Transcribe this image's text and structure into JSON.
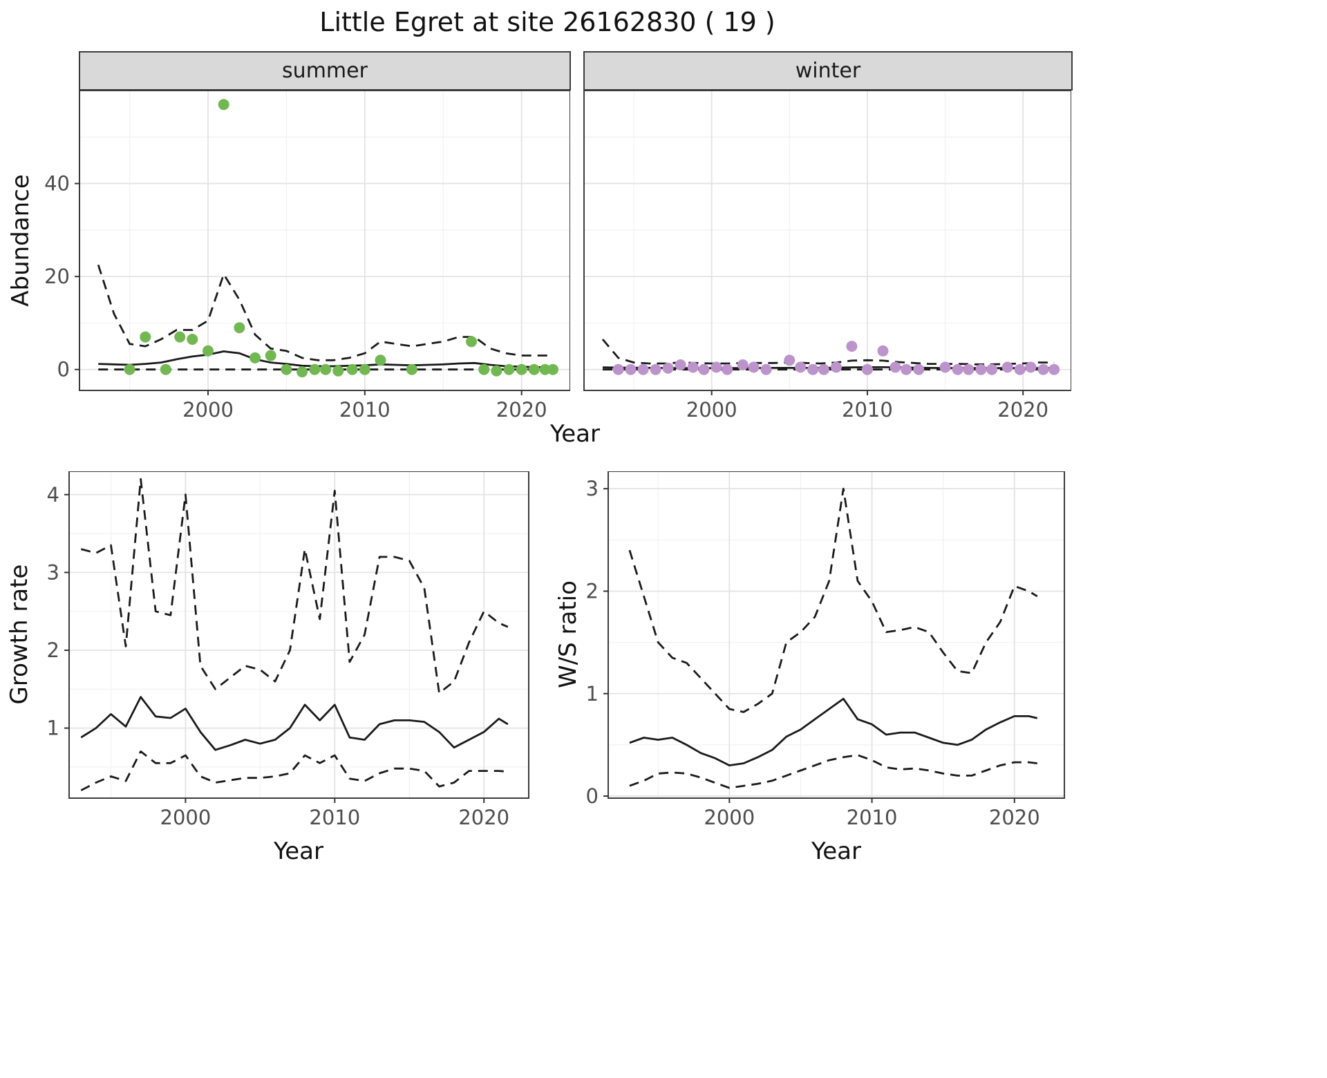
{
  "title": "Little Egret at site 26162830 ( 19 )",
  "axis_labels": {
    "abundance": "Abundance",
    "year": "Year",
    "growth_rate": "Growth rate",
    "ws_ratio": "W/S ratio"
  },
  "facets": {
    "summer": "summer",
    "winter": "winter"
  },
  "colors": {
    "summer_point": "#72b852",
    "winter_point": "#bd93cc",
    "line": "#1a1a1a",
    "grid_major": "#e3e3e3",
    "grid_minor": "#f1f1f1",
    "panel_border": "#3b3b3b",
    "tick_label": "#4d4d4d",
    "strip_bg": "#d9d9d9"
  },
  "chart_data": [
    {
      "id": "summer",
      "type": "scatter",
      "title": "summer",
      "xlabel": "Year",
      "ylabel": "Abundance",
      "xlim": [
        1991.8,
        2023.1
      ],
      "ylim": [
        -4.5,
        60
      ],
      "xticks": [
        2000,
        2010,
        2020
      ],
      "yticks": [
        0,
        20,
        40
      ],
      "grid": true,
      "series": [
        {
          "name": "lower_ci",
          "style": "line",
          "dash": true,
          "color": "#1a1a1a",
          "x": [
            1993,
            1994,
            1995,
            1996,
            1997,
            1998,
            1999,
            2000,
            2001,
            2002,
            2003,
            2004,
            2005,
            2006,
            2007,
            2008,
            2009,
            2010,
            2011,
            2012,
            2013,
            2014,
            2015,
            2016,
            2017,
            2018,
            2019,
            2020,
            2021,
            2022
          ],
          "y": [
            0,
            0,
            0,
            0,
            0,
            0,
            0,
            0,
            0,
            0,
            0,
            0,
            0,
            0,
            0,
            0,
            0,
            0,
            0,
            0,
            0,
            0,
            0,
            0,
            0,
            0,
            0,
            0,
            0,
            0
          ]
        },
        {
          "name": "upper_ci",
          "style": "line",
          "dash": true,
          "color": "#1a1a1a",
          "x": [
            1993,
            1994,
            1995,
            1996,
            1997,
            1998,
            1999,
            2000,
            2001,
            2002,
            2003,
            2004,
            2005,
            2006,
            2007,
            2008,
            2009,
            2010,
            2011,
            2012,
            2013,
            2014,
            2015,
            2016,
            2017,
            2018,
            2019,
            2020,
            2021,
            2022
          ],
          "y": [
            22.5,
            12,
            5.5,
            5,
            6.5,
            8.5,
            8.5,
            10.5,
            20.5,
            15,
            7.5,
            4.5,
            4,
            2.5,
            2,
            2,
            2.5,
            3.5,
            6,
            5.5,
            5,
            5.5,
            6,
            7,
            7,
            4.5,
            3.5,
            3,
            3,
            3
          ]
        },
        {
          "name": "trend",
          "style": "line",
          "dash": false,
          "color": "#1a1a1a",
          "x": [
            1993,
            1994,
            1995,
            1996,
            1997,
            1998,
            1999,
            2000,
            2001,
            2002,
            2003,
            2004,
            2005,
            2006,
            2007,
            2008,
            2009,
            2010,
            2011,
            2012,
            2013,
            2014,
            2015,
            2016,
            2017,
            2018,
            2019,
            2020,
            2021,
            2022
          ],
          "y": [
            1.2,
            1.1,
            1.0,
            1.2,
            1.5,
            2.2,
            2.8,
            3.2,
            3.9,
            3.5,
            2.2,
            1.5,
            1.2,
            0.8,
            0.7,
            0.7,
            0.8,
            0.9,
            1.1,
            1.0,
            0.9,
            1.0,
            1.1,
            1.3,
            1.4,
            1.0,
            0.7,
            0.6,
            0.5,
            0.5
          ]
        },
        {
          "name": "observed",
          "style": "points",
          "color": "#72b852",
          "x": [
            1995,
            1996,
            1997.3,
            1998.2,
            1999,
            2000,
            2001,
            2002,
            2003,
            2004,
            2005,
            2006,
            2006.8,
            2007.5,
            2008.3,
            2009.2,
            2010,
            2011,
            2013,
            2016.8,
            2017.6,
            2018.4,
            2019.2,
            2020,
            2020.8,
            2021.5,
            2022
          ],
          "y": [
            0,
            7,
            0,
            7,
            6.5,
            4,
            57,
            9,
            2.5,
            3,
            0,
            -0.5,
            0,
            0,
            -0.3,
            0,
            0,
            2,
            0,
            6,
            0,
            -0.3,
            0,
            0,
            0,
            0,
            0
          ]
        }
      ]
    },
    {
      "id": "winter",
      "type": "scatter",
      "title": "winter",
      "xlabel": "Year",
      "ylabel": "Abundance",
      "xlim": [
        1991.8,
        2023.1
      ],
      "ylim": [
        -4.5,
        60
      ],
      "xticks": [
        2000,
        2010,
        2020
      ],
      "yticks": [
        0,
        20,
        40
      ],
      "grid": true,
      "series": [
        {
          "name": "lower_ci",
          "style": "line",
          "dash": true,
          "color": "#1a1a1a",
          "x": [
            1993,
            1994,
            1995,
            1996,
            1997,
            1998,
            1999,
            2000,
            2001,
            2002,
            2003,
            2004,
            2005,
            2006,
            2007,
            2008,
            2009,
            2010,
            2011,
            2012,
            2013,
            2014,
            2015,
            2016,
            2017,
            2018,
            2019,
            2020,
            2021,
            2022
          ],
          "y": [
            0,
            0,
            0,
            0,
            0,
            0,
            0,
            0,
            0,
            0,
            0,
            0,
            0,
            0,
            0,
            0,
            0,
            0,
            0,
            0,
            0,
            0,
            0,
            0,
            0,
            0,
            0,
            0,
            0,
            0
          ]
        },
        {
          "name": "upper_ci",
          "style": "line",
          "dash": true,
          "color": "#1a1a1a",
          "x": [
            1993,
            1994,
            1995,
            1996,
            1997,
            1998,
            1999,
            2000,
            2001,
            2002,
            2003,
            2004,
            2005,
            2006,
            2007,
            2008,
            2009,
            2010,
            2011,
            2012,
            2013,
            2014,
            2015,
            2016,
            2017,
            2018,
            2019,
            2020,
            2021,
            2022
          ],
          "y": [
            6.5,
            2.5,
            1.5,
            1.3,
            1.3,
            1.5,
            1.4,
            1.3,
            1.3,
            1.4,
            1.4,
            1.4,
            1.5,
            1.4,
            1.3,
            1.5,
            1.9,
            2.0,
            1.9,
            1.6,
            1.4,
            1.2,
            1.2,
            1.2,
            1.1,
            1.1,
            1.2,
            1.3,
            1.5,
            1.5
          ]
        },
        {
          "name": "trend",
          "style": "line",
          "dash": false,
          "color": "#1a1a1a",
          "x": [
            1993,
            1994,
            1995,
            1996,
            1997,
            1998,
            1999,
            2000,
            2001,
            2002,
            2003,
            2004,
            2005,
            2006,
            2007,
            2008,
            2009,
            2010,
            2011,
            2012,
            2013,
            2014,
            2015,
            2016,
            2017,
            2018,
            2019,
            2020,
            2021,
            2022
          ],
          "y": [
            0.45,
            0.4,
            0.38,
            0.35,
            0.33,
            0.32,
            0.3,
            0.3,
            0.3,
            0.32,
            0.33,
            0.35,
            0.35,
            0.35,
            0.35,
            0.38,
            0.45,
            0.5,
            0.5,
            0.45,
            0.4,
            0.35,
            0.32,
            0.3,
            0.3,
            0.3,
            0.3,
            0.3,
            0.3,
            0.3
          ]
        },
        {
          "name": "observed",
          "style": "points",
          "color": "#bd93cc",
          "x": [
            1994,
            1994.8,
            1995.6,
            1996.4,
            1997.2,
            1998,
            1998.8,
            1999.5,
            2000.3,
            2001,
            2002,
            2002.7,
            2003.5,
            2005,
            2005.7,
            2006.5,
            2007.2,
            2008,
            2009,
            2010,
            2011,
            2011.8,
            2012.5,
            2013.3,
            2015,
            2015.8,
            2016.5,
            2017.3,
            2018,
            2019,
            2019.8,
            2020.5,
            2021.3,
            2022
          ],
          "y": [
            0,
            0,
            0,
            0,
            0.3,
            1,
            0.5,
            0,
            0.5,
            0,
            1,
            0.5,
            0,
            2,
            0.5,
            0,
            0,
            0.5,
            5,
            0,
            4,
            0.5,
            0,
            0,
            0.5,
            0,
            0,
            0,
            0,
            0.5,
            0,
            0.5,
            0,
            0
          ]
        }
      ]
    },
    {
      "id": "growth",
      "type": "line",
      "title": "Growth rate",
      "xlabel": "Year",
      "ylabel": "Growth rate",
      "xlim": [
        1992.2,
        2023.0
      ],
      "ylim": [
        0.1,
        4.3
      ],
      "xticks": [
        2000,
        2010,
        2020
      ],
      "yticks": [
        1,
        2,
        3,
        4
      ],
      "grid": true,
      "series": [
        {
          "name": "lower_ci",
          "style": "line",
          "dash": true,
          "color": "#1a1a1a",
          "x": [
            1993,
            1994,
            1995,
            1996,
            1997,
            1998,
            1999,
            2000,
            2001,
            2002,
            2003,
            2004,
            2005,
            2006,
            2007,
            2008,
            2009,
            2010,
            2011,
            2012,
            2013,
            2014,
            2015,
            2016,
            2017,
            2018,
            2019,
            2020,
            2021,
            2021.6
          ],
          "y": [
            0.2,
            0.3,
            0.38,
            0.32,
            0.7,
            0.55,
            0.55,
            0.65,
            0.38,
            0.3,
            0.33,
            0.36,
            0.36,
            0.38,
            0.42,
            0.65,
            0.55,
            0.65,
            0.35,
            0.32,
            0.42,
            0.48,
            0.48,
            0.45,
            0.25,
            0.3,
            0.45,
            0.45,
            0.45,
            0.44
          ]
        },
        {
          "name": "upper_ci",
          "style": "line",
          "dash": true,
          "color": "#1a1a1a",
          "x": [
            1993,
            1994,
            1995,
            1996,
            1997,
            1998,
            1999,
            2000,
            2001,
            2002,
            2003,
            2004,
            2005,
            2006,
            2007,
            2008,
            2009,
            2010,
            2011,
            2012,
            2013,
            2014,
            2015,
            2016,
            2017,
            2018,
            2019,
            2020,
            2021,
            2021.6
          ],
          "y": [
            3.3,
            3.25,
            3.35,
            2.05,
            4.2,
            2.5,
            2.45,
            4.0,
            1.8,
            1.5,
            1.65,
            1.8,
            1.75,
            1.6,
            2.0,
            3.3,
            2.4,
            4.05,
            1.85,
            2.2,
            3.2,
            3.2,
            3.15,
            2.8,
            1.45,
            1.6,
            2.1,
            2.5,
            2.35,
            2.3
          ]
        },
        {
          "name": "trend",
          "style": "line",
          "dash": false,
          "color": "#1a1a1a",
          "x": [
            1993,
            1994,
            1995,
            1996,
            1997,
            1998,
            1999,
            2000,
            2001,
            2002,
            2003,
            2004,
            2005,
            2006,
            2007,
            2008,
            2009,
            2010,
            2011,
            2012,
            2013,
            2014,
            2015,
            2016,
            2017,
            2018,
            2019,
            2020,
            2021,
            2021.6
          ],
          "y": [
            0.88,
            1.0,
            1.18,
            1.02,
            1.4,
            1.15,
            1.13,
            1.25,
            0.95,
            0.72,
            0.78,
            0.85,
            0.8,
            0.85,
            1.0,
            1.3,
            1.1,
            1.3,
            0.88,
            0.85,
            1.05,
            1.1,
            1.1,
            1.08,
            0.95,
            0.75,
            0.85,
            0.95,
            1.12,
            1.05
          ]
        }
      ]
    },
    {
      "id": "ws",
      "type": "line",
      "title": "W/S ratio",
      "xlabel": "Year",
      "ylabel": "W/S ratio",
      "xlim": [
        1991.5,
        2023.5
      ],
      "ylim": [
        -0.02,
        3.17
      ],
      "xticks": [
        2000,
        2010,
        2020
      ],
      "yticks": [
        0,
        1,
        2,
        3
      ],
      "grid": true,
      "series": [
        {
          "name": "lower_ci",
          "style": "line",
          "dash": true,
          "color": "#1a1a1a",
          "x": [
            1993,
            1994,
            1995,
            1996,
            1997,
            1998,
            1999,
            2000,
            2001,
            2002,
            2003,
            2004,
            2005,
            2006,
            2007,
            2008,
            2009,
            2010,
            2011,
            2012,
            2013,
            2014,
            2015,
            2016,
            2017,
            2018,
            2019,
            2020,
            2021,
            2021.6
          ],
          "y": [
            0.1,
            0.15,
            0.22,
            0.23,
            0.22,
            0.18,
            0.13,
            0.08,
            0.1,
            0.12,
            0.15,
            0.2,
            0.25,
            0.3,
            0.35,
            0.38,
            0.4,
            0.35,
            0.28,
            0.26,
            0.27,
            0.25,
            0.22,
            0.2,
            0.2,
            0.25,
            0.3,
            0.33,
            0.33,
            0.32
          ]
        },
        {
          "name": "upper_ci",
          "style": "line",
          "dash": true,
          "color": "#1a1a1a",
          "x": [
            1993,
            1994,
            1995,
            1996,
            1997,
            1998,
            1999,
            2000,
            2001,
            2002,
            2003,
            2004,
            2005,
            2006,
            2007,
            2008,
            2009,
            2010,
            2011,
            2012,
            2013,
            2014,
            2015,
            2016,
            2017,
            2018,
            2019,
            2020,
            2021,
            2021.6
          ],
          "y": [
            2.4,
            1.95,
            1.5,
            1.35,
            1.3,
            1.15,
            1.0,
            0.85,
            0.82,
            0.9,
            1.0,
            1.5,
            1.6,
            1.75,
            2.1,
            3.0,
            2.1,
            1.9,
            1.6,
            1.62,
            1.65,
            1.6,
            1.4,
            1.22,
            1.2,
            1.5,
            1.7,
            2.05,
            2.0,
            1.95
          ]
        },
        {
          "name": "trend",
          "style": "line",
          "dash": false,
          "color": "#1a1a1a",
          "x": [
            1993,
            1994,
            1995,
            1996,
            1997,
            1998,
            1999,
            2000,
            2001,
            2002,
            2003,
            2004,
            2005,
            2006,
            2007,
            2008,
            2009,
            2010,
            2011,
            2012,
            2013,
            2014,
            2015,
            2016,
            2017,
            2018,
            2019,
            2020,
            2021,
            2021.6
          ],
          "y": [
            0.52,
            0.57,
            0.55,
            0.57,
            0.5,
            0.42,
            0.37,
            0.3,
            0.32,
            0.38,
            0.45,
            0.58,
            0.65,
            0.75,
            0.85,
            0.95,
            0.75,
            0.7,
            0.6,
            0.62,
            0.62,
            0.57,
            0.52,
            0.5,
            0.55,
            0.65,
            0.72,
            0.78,
            0.78,
            0.76
          ]
        }
      ]
    }
  ]
}
